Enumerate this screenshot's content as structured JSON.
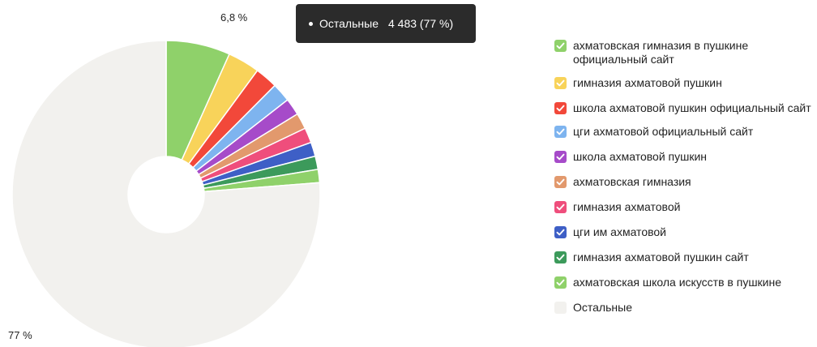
{
  "chart_data": {
    "type": "pie",
    "donut": true,
    "title": "",
    "slices": [
      {
        "name": "ахматовская гимназия в пушкине официальный сайт",
        "value": 6.8,
        "color": "#8fd16a"
      },
      {
        "name": "гимназия ахматовой пушкин",
        "value": 3.4,
        "color": "#f8d35a"
      },
      {
        "name": "школа ахматовой пушкин официальный сайт",
        "value": 2.4,
        "color": "#f2483a"
      },
      {
        "name": "цги ахматовой официальный сайт",
        "value": 2.0,
        "color": "#7eb4ef"
      },
      {
        "name": "школа ахматовой пушкин",
        "value": 1.8,
        "color": "#a64bc9"
      },
      {
        "name": "ахматовская гимназия",
        "value": 1.7,
        "color": "#e2996d"
      },
      {
        "name": "гимназия ахматовой",
        "value": 1.6,
        "color": "#ef4e7c"
      },
      {
        "name": "цги им ахматовой",
        "value": 1.5,
        "color": "#3e5fc6"
      },
      {
        "name": "гимназия ахматовой пушкин сайт",
        "value": 1.4,
        "color": "#3c9a5b"
      },
      {
        "name": "ахматовская школа искусств в пушкине",
        "value": 1.4,
        "color": "#8fd16a"
      },
      {
        "name": "Остальные",
        "value": 77.0,
        "color": "#f2f1ee"
      }
    ],
    "slice_labels": {
      "first": "6,8 %",
      "last": "77 %"
    },
    "legend_position": "right"
  },
  "tooltip": {
    "name": "Остальные",
    "value": "4 483 (77 %)"
  },
  "legend": {
    "items": [
      {
        "label": "ахматовская гимназия в пушкине официальный сайт",
        "color": "#8fd16a",
        "checked": true
      },
      {
        "label": "гимназия ахматовой пушкин",
        "color": "#f8d35a",
        "checked": true
      },
      {
        "label": "школа ахматовой пушкин официальный сайт",
        "color": "#f2483a",
        "checked": true
      },
      {
        "label": "цги ахматовой официальный сайт",
        "color": "#7eb4ef",
        "checked": true
      },
      {
        "label": "школа ахматовой пушкин",
        "color": "#a64bc9",
        "checked": true
      },
      {
        "label": "ахматовская гимназия",
        "color": "#e2996d",
        "checked": true
      },
      {
        "label": "гимназия ахматовой",
        "color": "#ef4e7c",
        "checked": true
      },
      {
        "label": "цги им ахматовой",
        "color": "#3e5fc6",
        "checked": true
      },
      {
        "label": "гимназия ахматовой пушкин сайт",
        "color": "#3c9a5b",
        "checked": true
      },
      {
        "label": "ахматовская школа искусств в пушкине",
        "color": "#8fd16a",
        "checked": true
      },
      {
        "label": "Остальные",
        "color": "#f2f1ee",
        "checked": false
      }
    ]
  }
}
